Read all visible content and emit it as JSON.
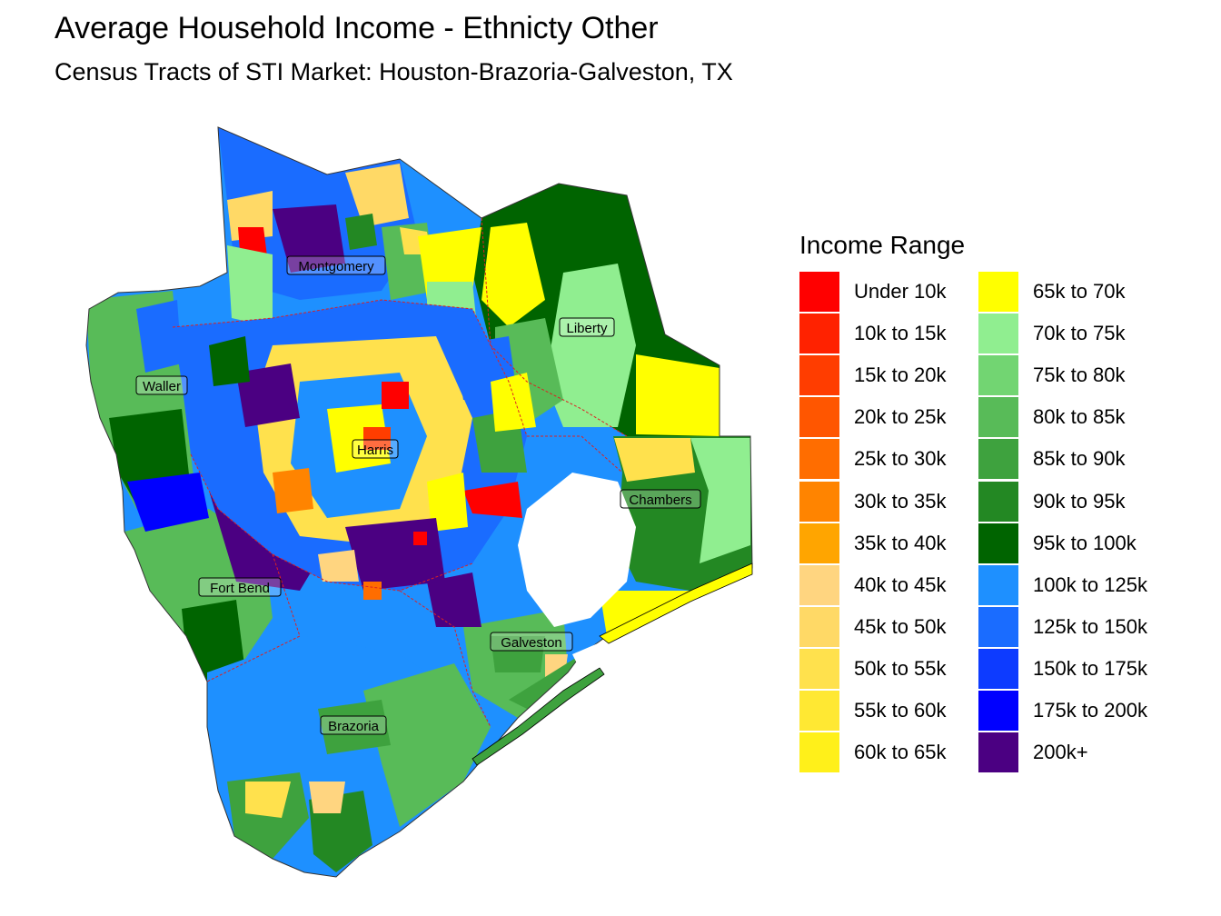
{
  "title": "Average Household Income - Ethnicty Other",
  "subtitle": "Census Tracts of STI Market: Houston-Brazoria-Galveston, TX",
  "legend": {
    "title": "Income Range",
    "items": [
      {
        "label": "Under 10k",
        "color": "#ff0000"
      },
      {
        "label": "10k to 15k",
        "color": "#ff2200"
      },
      {
        "label": "15k to 20k",
        "color": "#ff3d00"
      },
      {
        "label": "20k to 25k",
        "color": "#ff5600"
      },
      {
        "label": "25k to 30k",
        "color": "#ff6d00"
      },
      {
        "label": "30k to 35k",
        "color": "#ff8400"
      },
      {
        "label": "35k to 40k",
        "color": "#ffa500"
      },
      {
        "label": "40k to 45k",
        "color": "#ffd580"
      },
      {
        "label": "45k to 50k",
        "color": "#ffd966"
      },
      {
        "label": "50k to 55k",
        "color": "#ffe14d"
      },
      {
        "label": "55k to 60k",
        "color": "#ffe833"
      },
      {
        "label": "60k to 65k",
        "color": "#fff01a"
      },
      {
        "label": "65k to 70k",
        "color": "#ffff00"
      },
      {
        "label": "70k to 75k",
        "color": "#90ee90"
      },
      {
        "label": "75k to 80k",
        "color": "#72d572"
      },
      {
        "label": "80k to 85k",
        "color": "#58bb58"
      },
      {
        "label": "85k to 90k",
        "color": "#3ea23e"
      },
      {
        "label": "90k to 95k",
        "color": "#238823"
      },
      {
        "label": "95k to 100k",
        "color": "#006400"
      },
      {
        "label": "100k to 125k",
        "color": "#1e90ff"
      },
      {
        "label": "125k to 150k",
        "color": "#1a6cff"
      },
      {
        "label": "150k to 175k",
        "color": "#0d3bff"
      },
      {
        "label": "175k to 200k",
        "color": "#0000ff"
      },
      {
        "label": "200k+",
        "color": "#4b0082"
      }
    ]
  },
  "counties": [
    {
      "name": "Montgomery"
    },
    {
      "name": "Liberty"
    },
    {
      "name": "Waller"
    },
    {
      "name": "Harris"
    },
    {
      "name": "Chambers"
    },
    {
      "name": "Fort Bend"
    },
    {
      "name": "Galveston"
    },
    {
      "name": "Brazoria"
    }
  ]
}
